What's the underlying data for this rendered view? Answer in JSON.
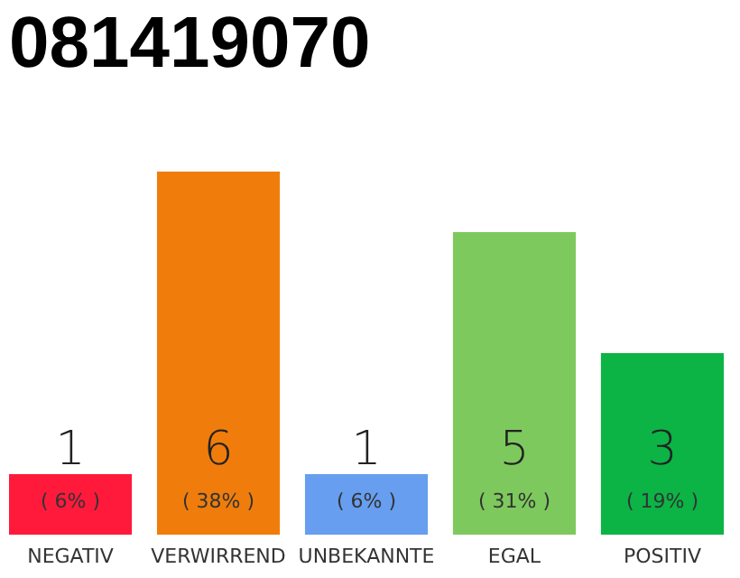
{
  "chart_data": {
    "type": "bar",
    "title": "081419070",
    "categories": [
      "NEGATIV",
      "VERWIRREND",
      "UNBEKANNTE",
      "EGAL",
      "POSITIV"
    ],
    "values": [
      1,
      6,
      1,
      5,
      3
    ],
    "colors": [
      "#ff1a3c",
      "#f07d0b",
      "#679ef0",
      "#7dc95d",
      "#0bb445"
    ],
    "ylim": [
      0,
      6
    ],
    "tick_labels": "x",
    "data_labels": true,
    "legend": false,
    "annotations": [
      "( 6% )",
      "( 38% )",
      "( 6% )",
      "( 31% )",
      "( 19% )"
    ]
  }
}
